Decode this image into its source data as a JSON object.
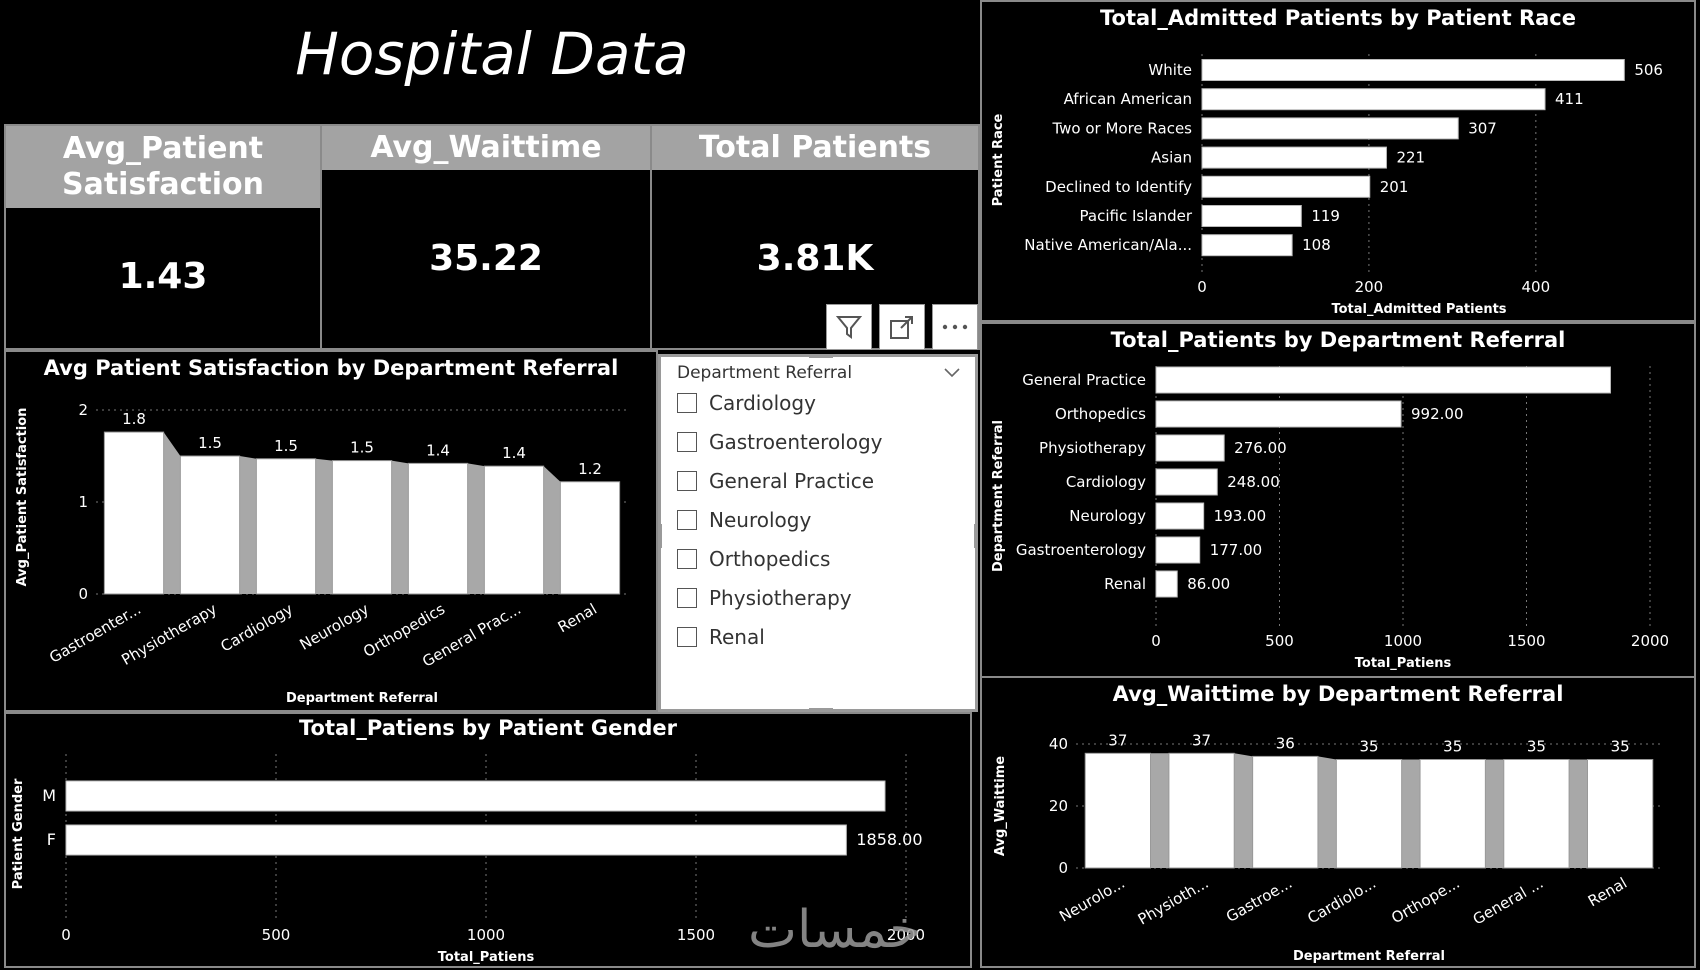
{
  "page_title": "Hospital Data",
  "kpis": [
    {
      "label": "Avg_Patient Satisfaction",
      "value": "1.43"
    },
    {
      "label": "Avg_Waittime",
      "value": "35.22"
    },
    {
      "label": "Total Patients",
      "value": "3.81K"
    }
  ],
  "toolbar_icons": [
    "filter-icon",
    "focus-mode-icon",
    "more-options-icon"
  ],
  "slicer": {
    "title": "Department Referral",
    "items": [
      "Cardiology",
      "Gastroenterology",
      "General Practice",
      "Neurology",
      "Orthopedics",
      "Physiotherapy",
      "Renal"
    ]
  },
  "watermark_text": "خمسات",
  "chart_data": [
    {
      "id": "race",
      "type": "bar",
      "orientation": "horizontal",
      "title": "Total_Admitted Patients by Patient Race",
      "xlabel": "Total_Admitted Patients",
      "ylabel": "Patient Race",
      "categories": [
        "White",
        "African American",
        "Two or More Races",
        "Asian",
        "Declined to Identify",
        "Pacific Islander",
        "Native American/Ala..."
      ],
      "values": [
        506,
        411,
        307,
        221,
        201,
        119,
        108
      ],
      "data_labels": [
        "506",
        "411",
        "307",
        "221",
        "201",
        "119",
        "108"
      ],
      "xlim": [
        0,
        520
      ],
      "xticks": [
        0,
        200,
        400
      ],
      "grid": true
    },
    {
      "id": "dept_total",
      "type": "bar",
      "orientation": "horizontal",
      "title": "Total_Patients by Department Referral",
      "xlabel": "Total_Patiens",
      "ylabel": "Department Referral",
      "categories": [
        "General Practice",
        "Orthopedics",
        "Physiotherapy",
        "Cardiology",
        "Neurology",
        "Gastroenterology",
        "Renal"
      ],
      "values": [
        1840,
        992,
        276,
        248,
        193,
        177,
        86
      ],
      "data_labels": [
        "",
        "992.00",
        "276.00",
        "248.00",
        "193.00",
        "177.00",
        "86.00"
      ],
      "xlim": [
        0,
        2000
      ],
      "xticks": [
        0,
        500,
        1000,
        1500,
        2000
      ],
      "grid": true
    },
    {
      "id": "satisfaction",
      "type": "bar",
      "orientation": "vertical",
      "title": "Avg Patient Satisfaction by Department Referral",
      "xlabel": "Department Referral",
      "ylabel": "Avg_Patient Satisfaction",
      "categories": [
        "Gastroenter...",
        "Physiotherapy",
        "Cardiology",
        "Neurology",
        "Orthopedics",
        "General Prac...",
        "Renal"
      ],
      "values": [
        1.76,
        1.5,
        1.47,
        1.45,
        1.42,
        1.39,
        1.22
      ],
      "data_labels": [
        "1.8",
        "1.5",
        "1.5",
        "1.5",
        "1.4",
        "1.4",
        "1.2"
      ],
      "ylim": [
        0,
        2
      ],
      "yticks": [
        0,
        1,
        2
      ],
      "grid": true
    },
    {
      "id": "gender",
      "type": "bar",
      "orientation": "horizontal",
      "title": "Total_Patiens by Patient Gender",
      "xlabel": "Total_Patiens",
      "ylabel": "Patient Gender",
      "categories": [
        "M",
        "F"
      ],
      "values": [
        1950,
        1858
      ],
      "data_labels": [
        "",
        "1858.00"
      ],
      "xlim": [
        0,
        2000
      ],
      "xticks": [
        0,
        500,
        1000,
        1500,
        2000
      ],
      "grid": true
    },
    {
      "id": "waittime",
      "type": "bar",
      "orientation": "vertical",
      "title": "Avg_Waittime by Department Referral",
      "xlabel": "Department Referral",
      "ylabel": "Avg_Waittime",
      "categories": [
        "Neurolo...",
        "Physioth...",
        "Gastroe...",
        "Cardiolo...",
        "Orthope...",
        "General ...",
        "Renal"
      ],
      "values": [
        37,
        37,
        36,
        35,
        35,
        35,
        35
      ],
      "data_labels": [
        "37",
        "37",
        "36",
        "35",
        "35",
        "35",
        "35"
      ],
      "ylim": [
        0,
        40
      ],
      "yticks": [
        0,
        20,
        40
      ],
      "grid": true
    }
  ]
}
